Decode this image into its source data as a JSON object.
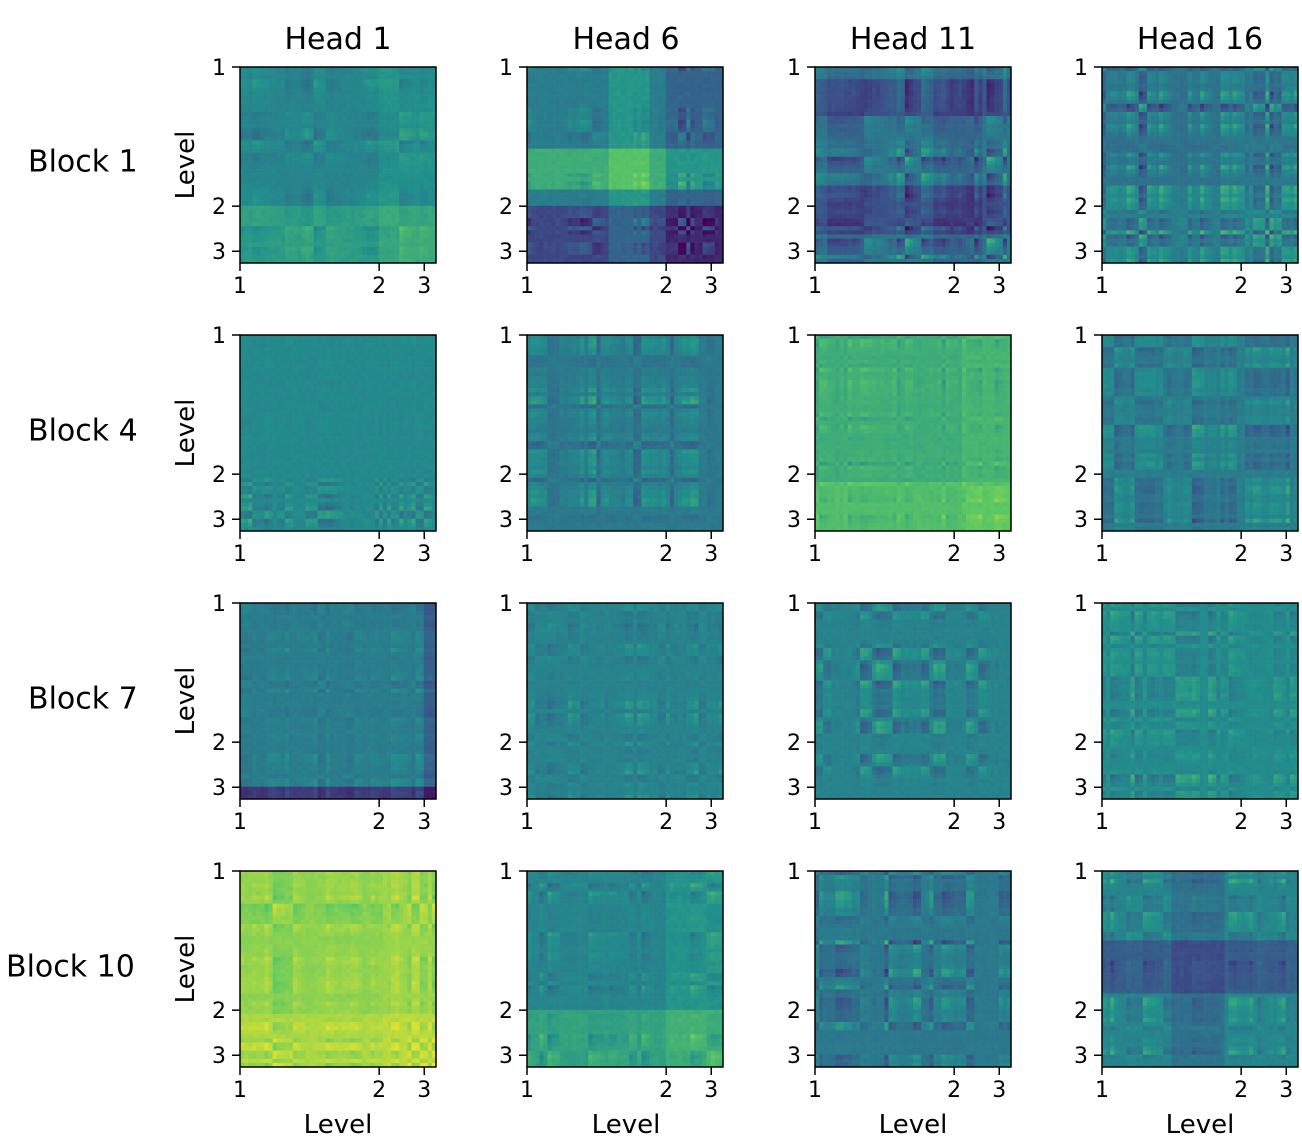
{
  "chart_data": {
    "type": "heatmap",
    "title": "",
    "columns": [
      "Head 1",
      "Head 6",
      "Head 11",
      "Head 16"
    ],
    "rows": [
      "Block 1",
      "Block 4",
      "Block 7",
      "Block 10"
    ],
    "ylabel": "Level",
    "xlabel": "Level",
    "ticks": [
      {
        "label": "1",
        "value": 0.0
      },
      {
        "label": "2",
        "value": 0.71
      },
      {
        "label": "3",
        "value": 0.94
      }
    ],
    "colormap": "viridis",
    "colormap_stops": [
      "#440154",
      "#3b528b",
      "#21918c",
      "#5ec962",
      "#fde725"
    ],
    "grid": false,
    "panels": [
      {
        "block": "Block 1",
        "head": "Head 1",
        "base": 0.45,
        "contrast": 0.22,
        "seed": 11,
        "bands": [
          {
            "from": 0.7,
            "to": 1.0,
            "shift": 0.1
          }
        ]
      },
      {
        "block": "Block 1",
        "head": "Head 6",
        "base": 0.42,
        "contrast": 0.4,
        "seed": 17,
        "bands": [
          {
            "from": 0.4,
            "to": 0.62,
            "shift": 0.2
          },
          {
            "from": 0.7,
            "to": 1.0,
            "shift": -0.2
          }
        ]
      },
      {
        "block": "Block 1",
        "head": "Head 11",
        "base": 0.4,
        "contrast": 0.45,
        "seed": 23,
        "bands": [
          {
            "from": 0.05,
            "to": 0.25,
            "shift": -0.15
          },
          {
            "from": 0.6,
            "to": 0.85,
            "shift": -0.15
          }
        ]
      },
      {
        "block": "Block 1",
        "head": "Head 16",
        "base": 0.45,
        "contrast": 0.48,
        "seed": 29,
        "bands": [
          {
            "from": 0.0,
            "to": 0.6,
            "shift": -0.05
          }
        ]
      },
      {
        "block": "Block 4",
        "head": "Head 1",
        "base": 0.47,
        "contrast": 0.05,
        "seed": 31,
        "bands": [
          {
            "from": 0.71,
            "to": 1.0,
            "shift": 0.0,
            "contrast": 0.35
          }
        ]
      },
      {
        "block": "Block 4",
        "head": "Head 6",
        "base": 0.4,
        "contrast": 0.42,
        "seed": 37,
        "bands": []
      },
      {
        "block": "Block 4",
        "head": "Head 11",
        "base": 0.62,
        "contrast": 0.22,
        "seed": 41,
        "bands": [
          {
            "from": 0.75,
            "to": 1.0,
            "shift": 0.08
          }
        ]
      },
      {
        "block": "Block 4",
        "head": "Head 16",
        "base": 0.42,
        "contrast": 0.4,
        "seed": 43,
        "bands": []
      },
      {
        "block": "Block 7",
        "head": "Head 1",
        "base": 0.42,
        "contrast": 0.22,
        "seed": 47,
        "bands": [
          {
            "from": 0.93,
            "to": 1.0,
            "shift": -0.25
          }
        ]
      },
      {
        "block": "Block 7",
        "head": "Head 6",
        "base": 0.44,
        "contrast": 0.3,
        "seed": 53,
        "bands": []
      },
      {
        "block": "Block 7",
        "head": "Head 11",
        "base": 0.44,
        "contrast": 0.35,
        "seed": 59,
        "bands": []
      },
      {
        "block": "Block 7",
        "head": "Head 16",
        "base": 0.48,
        "contrast": 0.25,
        "seed": 61,
        "bands": [
          {
            "from": 0.7,
            "to": 0.92,
            "shift": 0.0,
            "contrast": 0.5
          }
        ]
      },
      {
        "block": "Block 10",
        "head": "Head 1",
        "base": 0.82,
        "contrast": 0.22,
        "seed": 67,
        "bands": [
          {
            "from": 0.71,
            "to": 1.0,
            "shift": 0.05
          }
        ]
      },
      {
        "block": "Block 10",
        "head": "Head 6",
        "base": 0.45,
        "contrast": 0.25,
        "seed": 71,
        "bands": [
          {
            "from": 0.7,
            "to": 1.0,
            "shift": 0.12
          }
        ]
      },
      {
        "block": "Block 10",
        "head": "Head 11",
        "base": 0.4,
        "contrast": 0.45,
        "seed": 73,
        "bands": []
      },
      {
        "block": "Block 10",
        "head": "Head 16",
        "base": 0.45,
        "contrast": 0.4,
        "seed": 79,
        "bands": [
          {
            "from": 0.35,
            "to": 0.62,
            "shift": -0.15
          }
        ]
      }
    ]
  }
}
